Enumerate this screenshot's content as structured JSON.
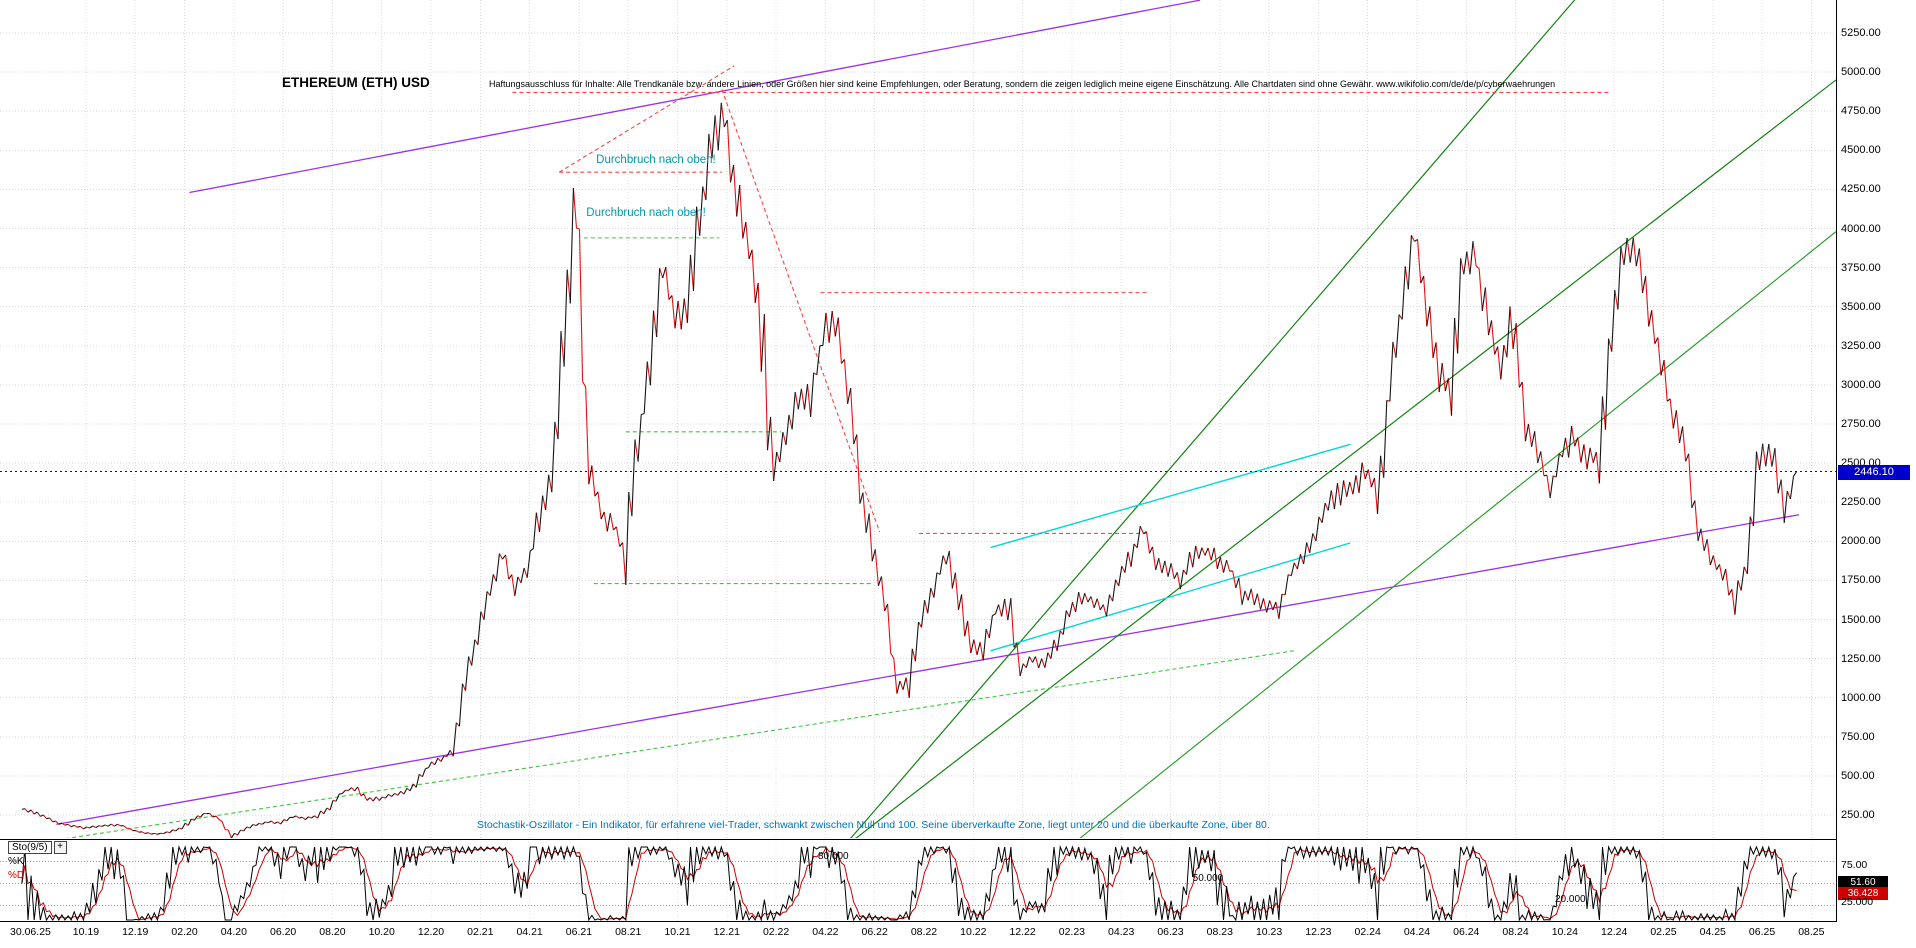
{
  "header": {
    "title": "ETHEREUM (ETH) USD",
    "disclaimer": "Haftungsausschluss für Inhalte: Alle Trendkanäle bzw. andere Linien, oder Größen hier sind keine Empfehlungen, oder Beratung, sondern die zeigen lediglich meine eigene Einschätzung. Alle Chartdaten sind ohne Gewähr. www.wikifolio.com/de/de/p/cyberwaehrungen"
  },
  "annotations": [
    {
      "text": "Durchbruch nach oben!",
      "t": 23.7,
      "price": 4430
    },
    {
      "text": "Durchbruch nach oben!",
      "t": 23.3,
      "price": 4090
    }
  ],
  "footnote": "Stochastik-Oszillator - Ein Indikator, für erfahrene viel-Trader, schwankt zwischen Null und 100. Seine überverkaufte Zone, liegt unter 20 und die überkaufte Zone, über 80.",
  "current_date_label": "30.06.25",
  "current_price": {
    "value": 2446.1,
    "label": "2446.10",
    "color": "#0000cc"
  },
  "price_axis": [
    {
      "v": 5250,
      "label": "5250.00"
    },
    {
      "v": 5000,
      "label": "5000.00"
    },
    {
      "v": 4750,
      "label": "4750.00"
    },
    {
      "v": 4500,
      "label": "4500.00"
    },
    {
      "v": 4250,
      "label": "4250.00"
    },
    {
      "v": 4000,
      "label": "4000.00"
    },
    {
      "v": 3750,
      "label": "3750.00"
    },
    {
      "v": 3500,
      "label": "3500.00"
    },
    {
      "v": 3250,
      "label": "3250.00"
    },
    {
      "v": 3000,
      "label": "3000.00"
    },
    {
      "v": 2750,
      "label": "2750.00"
    },
    {
      "v": 2500,
      "label": "2500.00"
    },
    {
      "v": 2250,
      "label": "2250.00"
    },
    {
      "v": 2000,
      "label": "2000.00"
    },
    {
      "v": 1750,
      "label": "1750.00"
    },
    {
      "v": 1500,
      "label": "1500.00"
    },
    {
      "v": 1250,
      "label": "1250.00"
    },
    {
      "v": 1000,
      "label": "1000.00"
    },
    {
      "v": 750,
      "label": "750.00"
    },
    {
      "v": 500,
      "label": "500.00"
    },
    {
      "v": 250,
      "label": "250.00"
    }
  ],
  "date_axis": [
    "10.19",
    "12.19",
    "02.20",
    "04.20",
    "06.20",
    "08.20",
    "10.20",
    "12.20",
    "02.21",
    "04.21",
    "06.21",
    "08.21",
    "10.21",
    "12.21",
    "02.22",
    "04.22",
    "06.22",
    "08.22",
    "10.22",
    "12.22",
    "02.23",
    "04.23",
    "06.23",
    "08.23",
    "10.23",
    "12.23",
    "02.24",
    "04.24",
    "06.24",
    "08.24",
    "10.24",
    "12.24",
    "02.25",
    "04.25",
    "06.25",
    "08.25"
  ],
  "oscillator": {
    "name": "Sto(9/5)",
    "expand_icon": "+",
    "k_label": "%K",
    "d_label": "%D",
    "k_color": "#000000",
    "d_color": "#cc0000",
    "k_value": 51.6,
    "d_value": 36.428,
    "k_value_label": "51.60",
    "d_value_label": "36.428",
    "levels": [
      {
        "value": 80,
        "label": "80.000",
        "t": 32.7
      },
      {
        "value": 50,
        "label": "50.000",
        "t": 47.9
      },
      {
        "value": 20,
        "label": "20.000",
        "t": 62.6
      }
    ],
    "axis_labels": [
      {
        "value": 75,
        "label": "75.00"
      },
      {
        "value": 25,
        "label": "25.000"
      }
    ]
  },
  "chart_data": {
    "type": "line",
    "title": "ETHEREUM (ETH) USD",
    "x_unit": "months since 2019-07",
    "last_date": "30.06.25",
    "last_price": 2446.1,
    "ylim": [
      0,
      5400
    ],
    "y_ticks": [
      250,
      500,
      750,
      1000,
      1250,
      1500,
      1750,
      2000,
      2250,
      2500,
      2750,
      3000,
      3250,
      3500,
      3750,
      4000,
      4250,
      4500,
      4750,
      5000,
      5250
    ],
    "x_tick_labels": [
      "10.19",
      "12.19",
      "02.20",
      "04.20",
      "06.20",
      "08.20",
      "10.20",
      "12.20",
      "02.21",
      "04.21",
      "06.21",
      "08.21",
      "10.21",
      "12.21",
      "02.22",
      "04.22",
      "06.22",
      "08.22",
      "10.22",
      "12.22",
      "02.23",
      "04.23",
      "06.23",
      "08.23",
      "10.23",
      "12.23",
      "02.24",
      "04.24",
      "06.24",
      "08.24",
      "10.24",
      "12.24",
      "02.25",
      "04.25",
      "06.25",
      "08.25"
    ],
    "series": [
      {
        "name": "ETH/USD",
        "t0": 0.4,
        "dt": 0.5,
        "values": [
          290,
          268,
          232,
          196,
          181,
          168,
          176,
          184,
          186,
          152,
          133,
          128,
          142,
          167,
          226,
          264,
          228,
          112,
          158,
          188,
          206,
          199,
          240,
          227,
          241,
          302,
          396,
          428,
          352,
          354,
          376,
          391,
          452,
          562,
          602,
          662,
          1105,
          1382,
          1705,
          1933,
          1700,
          1822,
          2152,
          2452,
          3355,
          4180,
          2460,
          2180,
          2105,
          1925,
          2610,
          3160,
          3805,
          3415,
          3455,
          4090,
          4610,
          4730,
          4210,
          3905,
          3360,
          2420,
          2660,
          2920,
          2905,
          3310,
          3452,
          3005,
          2355,
          1955,
          1655,
          1068,
          1105,
          1505,
          1705,
          1925,
          1655,
          1335,
          1305,
          1555,
          1605,
          1155,
          1255,
          1205,
          1355,
          1555,
          1655,
          1605,
          1565,
          1755,
          1905,
          2095,
          1855,
          1805,
          1755,
          1905,
          1935,
          1875,
          1835,
          1655,
          1625,
          1595,
          1565,
          1805,
          1905,
          2055,
          2255,
          2305,
          2355,
          2455,
          2305,
          2955,
          3505,
          3995,
          3505,
          3055,
          2955,
          3755,
          3805,
          3405,
          3105,
          3455,
          2705,
          2605,
          2305,
          2605,
          2655,
          2505,
          2555,
          3355,
          3855,
          3905,
          3455,
          3205,
          2755,
          2655,
          2055,
          1905,
          1805,
          1605,
          1855,
          2555,
          2605,
          2205,
          2446.1
        ]
      }
    ],
    "trend_lines": [
      {
        "name": "purple-channel-top",
        "color": "#9a2fe8",
        "width": 1.3,
        "dash": null,
        "p1": [
          7.2,
          4230
        ],
        "p2": [
          48.2,
          5460
        ]
      },
      {
        "name": "purple-support",
        "color": "#9a2fe8",
        "width": 1.3,
        "dash": null,
        "p1": [
          1.8,
          190
        ],
        "p2": [
          72.5,
          2170
        ]
      },
      {
        "name": "green-trend-steep",
        "color": "#128212",
        "width": 1.2,
        "dash": null,
        "p1": [
          33.8,
          60
        ],
        "p2": [
          63.5,
          5480
        ]
      },
      {
        "name": "green-trend-mid",
        "color": "#128212",
        "width": 1.2,
        "dash": null,
        "p1": [
          33.9,
          60
        ],
        "p2": [
          74,
          4950
        ]
      },
      {
        "name": "green-trend-low",
        "color": "#2f9e2f",
        "width": 1.2,
        "dash": null,
        "p1": [
          43,
          60
        ],
        "p2": [
          74,
          3980
        ]
      },
      {
        "name": "cyan-channel-top",
        "color": "#00d8d8",
        "width": 1.4,
        "dash": null,
        "p1": [
          39.7,
          1960
        ],
        "p2": [
          54.3,
          2620
        ]
      },
      {
        "name": "cyan-channel-bottom",
        "color": "#00d8d8",
        "width": 1.4,
        "dash": null,
        "p1": [
          39.7,
          1300
        ],
        "p2": [
          54.3,
          1990
        ]
      },
      {
        "name": "resistance-ath",
        "color": "#ff4444",
        "width": 1.1,
        "dash": "4,3",
        "p1": [
          20.3,
          4870
        ],
        "p2": [
          64.8,
          4870
        ]
      },
      {
        "name": "resistance-box-2021",
        "color": "#ff4444",
        "width": 1.1,
        "dash": "4,3",
        "p1": [
          22.2,
          4360
        ],
        "p2": [
          28.8,
          4360
        ]
      },
      {
        "name": "wedge-top-2021",
        "color": "#ff4444",
        "width": 1.1,
        "dash": "4,3",
        "p1": [
          22.2,
          4360
        ],
        "p2": [
          29.3,
          5040
        ]
      },
      {
        "name": "downtrend-2022",
        "color": "#ff4444",
        "width": 1.1,
        "dash": "4,3",
        "p1": [
          28.8,
          4890
        ],
        "p2": [
          35.2,
          2060
        ]
      },
      {
        "name": "resistance-3600",
        "color": "#ff4444",
        "width": 1.1,
        "dash": "4,3",
        "p1": [
          32.8,
          3590
        ],
        "p2": [
          46.1,
          3590
        ]
      },
      {
        "name": "resistance-2050",
        "color": "#ff4444",
        "width": 1.1,
        "dash": "4,3",
        "p1": [
          36.8,
          2050
        ],
        "p2": [
          46.1,
          2050
        ]
      },
      {
        "name": "support-3940",
        "color": "#3bc83b",
        "width": 1.1,
        "dash": "4,3",
        "p1": [
          23.2,
          3940
        ],
        "p2": [
          28.7,
          3940
        ]
      },
      {
        "name": "support-2700",
        "color": "#3bc83b",
        "width": 1.1,
        "dash": "4,3",
        "p1": [
          24.9,
          2700
        ],
        "p2": [
          31.2,
          2700
        ]
      },
      {
        "name": "support-1730",
        "color": "#3bc83b",
        "width": 1.1,
        "dash": "4,3",
        "p1": [
          23.6,
          1730
        ],
        "p2": [
          34.9,
          1730
        ]
      },
      {
        "name": "longterm-support",
        "color": "#3bc83b",
        "width": 1.1,
        "dash": "4,3",
        "p1": [
          1.6,
          85
        ],
        "p2": [
          52,
          1300
        ]
      }
    ]
  }
}
